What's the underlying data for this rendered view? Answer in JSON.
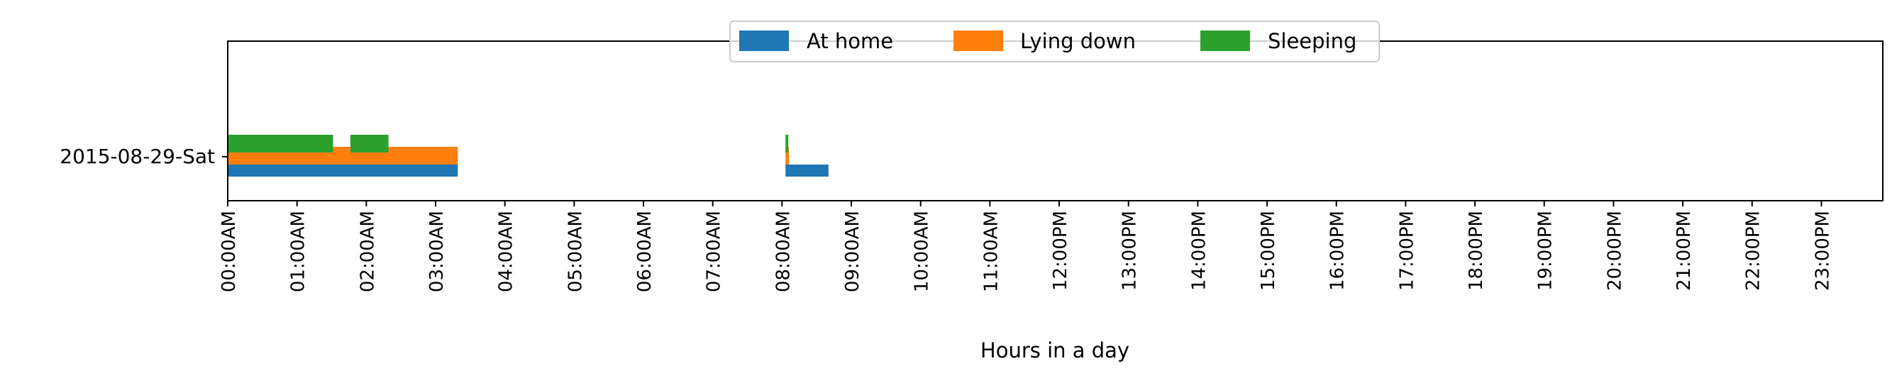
{
  "chart_data": {
    "type": "bar",
    "orientation": "horizontal-timeline",
    "xlabel": "Hours in a day",
    "ylabel": "",
    "xlim": [
      0,
      24
    ],
    "x_ticks": [
      "00:00AM",
      "01:00AM",
      "02:00AM",
      "03:00AM",
      "04:00AM",
      "05:00AM",
      "06:00AM",
      "07:00AM",
      "08:00AM",
      "09:00AM",
      "10:00AM",
      "11:00AM",
      "12:00PM",
      "13:00PM",
      "14:00PM",
      "15:00PM",
      "16:00PM",
      "17:00PM",
      "18:00PM",
      "19:00PM",
      "20:00PM",
      "21:00PM",
      "22:00PM",
      "23:00PM"
    ],
    "categories": [
      "2015-08-29-Sat"
    ],
    "legend_position": "top-center",
    "grid": false,
    "series": [
      {
        "name": "At home",
        "color": "#1f77b4",
        "intervals": [
          {
            "start": 0.0,
            "end": 3.32
          },
          {
            "start": 8.05,
            "end": 8.67
          }
        ]
      },
      {
        "name": "Lying down",
        "color": "#ff7f0e",
        "intervals": [
          {
            "start": 0.0,
            "end": 3.32
          },
          {
            "start": 8.05,
            "end": 8.1
          }
        ]
      },
      {
        "name": "Sleeping",
        "color": "#2ca02c",
        "intervals": [
          {
            "start": 0.0,
            "end": 1.52
          },
          {
            "start": 1.77,
            "end": 2.32
          },
          {
            "start": 8.05,
            "end": 8.09
          }
        ]
      }
    ]
  }
}
